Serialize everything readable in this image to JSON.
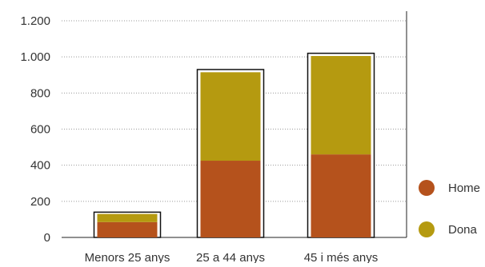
{
  "chart_data": {
    "type": "bar",
    "stacked": true,
    "categories": [
      "Menors 25 anys",
      "25 a 44 anys",
      "45 i més anys"
    ],
    "series": [
      {
        "name": "Home",
        "values": [
          85,
          425,
          460
        ],
        "color": "#b5521c"
      },
      {
        "name": "Dona",
        "values": [
          45,
          490,
          545
        ],
        "color": "#b59a10"
      }
    ],
    "totals_outline": [
      140,
      930,
      1020
    ],
    "ylim": [
      0,
      1200
    ],
    "yticks": [
      0,
      200,
      400,
      600,
      800,
      1000,
      1200
    ],
    "ytick_labels": [
      "0",
      "200",
      "400",
      "600",
      "800",
      "1.000",
      "1.200"
    ],
    "grid": "dotted",
    "legend_position": "right"
  }
}
